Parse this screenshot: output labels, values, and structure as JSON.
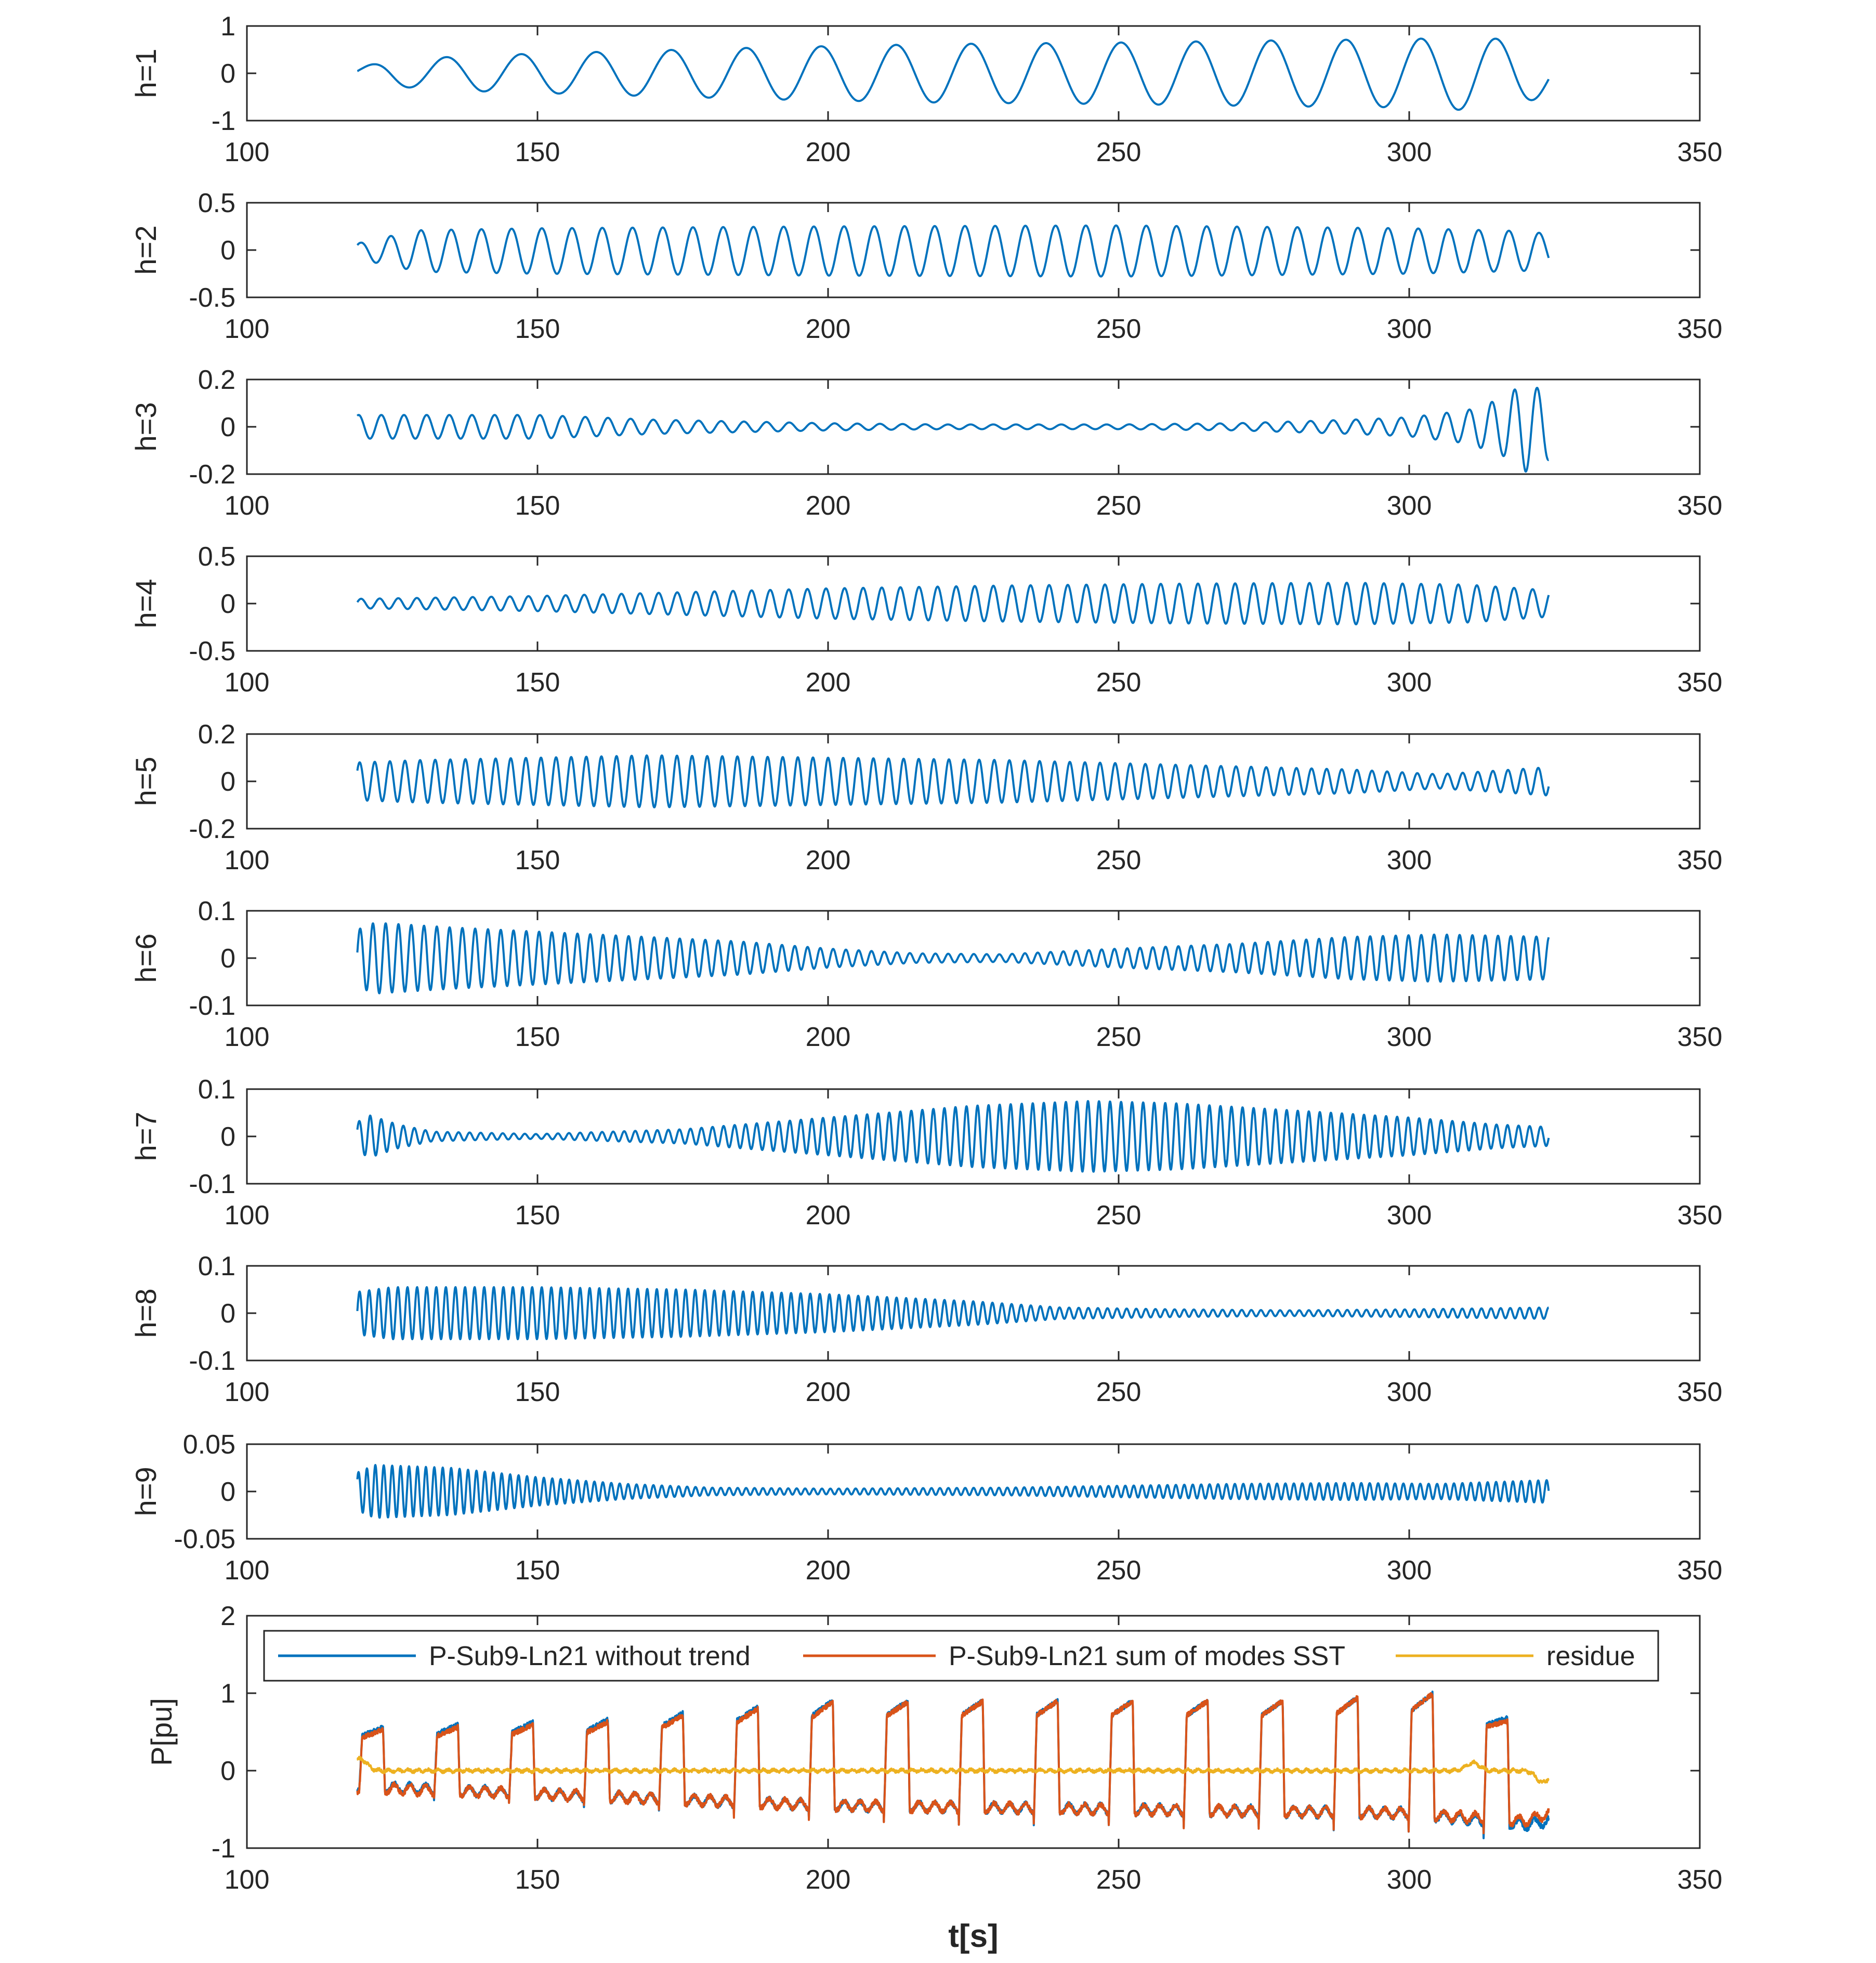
{
  "chart_data": [
    {
      "type": "line",
      "id": "h1",
      "ylabel": "h=1",
      "xlim": [
        100,
        350
      ],
      "ylim": [
        -1,
        1
      ],
      "xticks": [
        100,
        150,
        200,
        250,
        300,
        350
      ],
      "yticks": [
        -1,
        0,
        1
      ],
      "ytick_labels": [
        "-1",
        "0",
        "1"
      ],
      "x_range": [
        119,
        324
      ],
      "series": [
        {
          "name": "h=1",
          "color": "#0072bd",
          "kind": "osc",
          "period": 12.9,
          "phase": 0.4,
          "offset": 0,
          "envelope": {
            "t": [
              119,
              125,
              140,
              160,
              190,
              220,
              250,
              280,
              300,
              310,
              318,
              324
            ],
            "a": [
              0.12,
              0.28,
              0.38,
              0.45,
              0.55,
              0.62,
              0.65,
              0.7,
              0.72,
              0.78,
              0.7,
              0.45
            ]
          }
        }
      ]
    },
    {
      "type": "line",
      "id": "h2",
      "ylabel": "h=2",
      "xlim": [
        100,
        350
      ],
      "ylim": [
        -0.5,
        0.5
      ],
      "xticks": [
        100,
        150,
        200,
        250,
        300,
        350
      ],
      "yticks": [
        -0.5,
        0,
        0.5
      ],
      "ytick_labels": [
        "-0.5",
        "0",
        "0.5"
      ],
      "x_range": [
        119,
        324
      ],
      "series": [
        {
          "name": "h=2",
          "color": "#0072bd",
          "kind": "osc",
          "period": 5.2,
          "phase": 0.9,
          "offset": -0.01,
          "envelope": {
            "t": [
              119,
              124,
              130,
              150,
              200,
              250,
              300,
              320,
              324
            ],
            "a": [
              0.08,
              0.15,
              0.22,
              0.24,
              0.26,
              0.27,
              0.24,
              0.21,
              0.18
            ]
          }
        }
      ]
    },
    {
      "type": "line",
      "id": "h3",
      "ylabel": "h=3",
      "xlim": [
        100,
        350
      ],
      "ylim": [
        -0.2,
        0.2
      ],
      "xticks": [
        100,
        150,
        200,
        250,
        300,
        350
      ],
      "yticks": [
        -0.2,
        0,
        0.2
      ],
      "ytick_labels": [
        "-0.2",
        "0",
        "0.2"
      ],
      "x_range": [
        119,
        324
      ],
      "series": [
        {
          "name": "h=3",
          "color": "#0072bd",
          "kind": "osc",
          "period": 3.9,
          "phase": 1.2,
          "offset": 0,
          "envelope": {
            "t": [
              119,
              130,
              150,
              170,
              200,
              220,
              250,
              270,
              290,
              300,
              310,
              316,
              320,
              324
            ],
            "a": [
              0.05,
              0.05,
              0.05,
              0.03,
              0.015,
              0.01,
              0.01,
              0.015,
              0.03,
              0.04,
              0.07,
              0.12,
              0.19,
              0.14
            ]
          }
        }
      ]
    },
    {
      "type": "line",
      "id": "h4",
      "ylabel": "h=4",
      "xlim": [
        100,
        350
      ],
      "ylim": [
        -0.5,
        0.5
      ],
      "xticks": [
        100,
        150,
        200,
        250,
        300,
        350
      ],
      "yticks": [
        -0.5,
        0,
        0.5
      ],
      "ytick_labels": [
        "-0.5",
        "0",
        "0.5"
      ],
      "x_range": [
        119,
        324
      ],
      "series": [
        {
          "name": "h=4",
          "color": "#0072bd",
          "kind": "osc",
          "period": 3.2,
          "phase": 0.3,
          "offset": 0,
          "envelope": {
            "t": [
              119,
              130,
              150,
              175,
              200,
              230,
              260,
              290,
              310,
              324
            ],
            "a": [
              0.05,
              0.06,
              0.08,
              0.12,
              0.16,
              0.19,
              0.21,
              0.22,
              0.2,
              0.14
            ]
          }
        }
      ]
    },
    {
      "type": "line",
      "id": "h5",
      "ylabel": "h=5",
      "xlim": [
        100,
        350
      ],
      "ylim": [
        -0.2,
        0.2
      ],
      "xticks": [
        100,
        150,
        200,
        250,
        300,
        350
      ],
      "yticks": [
        -0.2,
        0,
        0.2
      ],
      "ytick_labels": [
        "-0.2",
        "0",
        "0.2"
      ],
      "x_range": [
        119,
        324
      ],
      "series": [
        {
          "name": "h=5",
          "color": "#0072bd",
          "kind": "osc",
          "period": 2.6,
          "phase": 0.6,
          "offset": 0,
          "envelope": {
            "t": [
              119,
              130,
              150,
              170,
              200,
              230,
              260,
              290,
              305,
              315,
              324
            ],
            "a": [
              0.08,
              0.09,
              0.1,
              0.11,
              0.1,
              0.09,
              0.07,
              0.05,
              0.03,
              0.045,
              0.06
            ]
          }
        }
      ]
    },
    {
      "type": "line",
      "id": "h6",
      "ylabel": "h=6",
      "xlim": [
        100,
        350
      ],
      "ylim": [
        -0.1,
        0.1
      ],
      "xticks": [
        100,
        150,
        200,
        250,
        300,
        350
      ],
      "yticks": [
        -0.1,
        0,
        0.1
      ],
      "ytick_labels": [
        "-0.1",
        "0",
        "0.1"
      ],
      "x_range": [
        119,
        324
      ],
      "series": [
        {
          "name": "h=6",
          "color": "#0072bd",
          "kind": "osc",
          "period": 2.2,
          "phase": 0.2,
          "offset": 0,
          "envelope": {
            "t": [
              119,
              122,
              135,
              160,
              185,
              200,
              215,
              230,
              250,
              270,
              290,
              305,
              324
            ],
            "a": [
              0.06,
              0.075,
              0.065,
              0.05,
              0.035,
              0.02,
              0.01,
              0.008,
              0.02,
              0.03,
              0.045,
              0.05,
              0.045
            ]
          }
        }
      ]
    },
    {
      "type": "line",
      "id": "h7",
      "ylabel": "h=7",
      "xlim": [
        100,
        350
      ],
      "ylim": [
        -0.1,
        0.1
      ],
      "xticks": [
        100,
        150,
        200,
        250,
        300,
        350
      ],
      "yticks": [
        -0.1,
        0,
        0.1
      ],
      "ytick_labels": [
        "-0.1",
        "0",
        "0.1"
      ],
      "x_range": [
        119,
        324
      ],
      "series": [
        {
          "name": "h=7",
          "color": "#0072bd",
          "kind": "osc",
          "period": 1.9,
          "phase": 0.5,
          "offset": 0,
          "envelope": {
            "t": [
              119,
              121,
              126,
              132,
              150,
              175,
              200,
              225,
              245,
              260,
              280,
              300,
              315,
              324
            ],
            "a": [
              0.03,
              0.045,
              0.025,
              0.01,
              0.005,
              0.015,
              0.04,
              0.065,
              0.075,
              0.07,
              0.055,
              0.04,
              0.025,
              0.02
            ]
          }
        }
      ]
    },
    {
      "type": "line",
      "id": "h8",
      "ylabel": "h=8",
      "xlim": [
        100,
        350
      ],
      "ylim": [
        -0.1,
        0.1
      ],
      "xticks": [
        100,
        150,
        200,
        250,
        300,
        350
      ],
      "yticks": [
        -0.1,
        0,
        0.1
      ],
      "ytick_labels": [
        "-0.1",
        "0",
        "0.1"
      ],
      "x_range": [
        119,
        324
      ],
      "series": [
        {
          "name": "h=8",
          "color": "#0072bd",
          "kind": "osc",
          "period": 1.65,
          "phase": 0.1,
          "offset": 0,
          "envelope": {
            "t": [
              119,
              125,
              150,
              175,
              200,
              225,
              240,
              260,
              280,
              300,
              324
            ],
            "a": [
              0.045,
              0.055,
              0.055,
              0.05,
              0.04,
              0.025,
              0.012,
              0.008,
              0.006,
              0.008,
              0.012
            ]
          }
        }
      ]
    },
    {
      "type": "line",
      "id": "h9",
      "ylabel": "h=9",
      "xlim": [
        100,
        350
      ],
      "ylim": [
        -0.05,
        0.05
      ],
      "xticks": [
        100,
        150,
        200,
        250,
        300,
        350
      ],
      "yticks": [
        -0.05,
        0,
        0.05
      ],
      "ytick_labels": [
        "-0.05",
        "0",
        "0.05"
      ],
      "x_range": [
        119,
        324
      ],
      "series": [
        {
          "name": "h=9",
          "color": "#0072bd",
          "kind": "osc",
          "period": 1.45,
          "phase": 0.7,
          "offset": 0,
          "envelope": {
            "t": [
              119,
              122,
              135,
              150,
              165,
              180,
              200,
              230,
              250,
              270,
              290,
              305,
              324
            ],
            "a": [
              0.02,
              0.028,
              0.025,
              0.015,
              0.008,
              0.004,
              0.003,
              0.004,
              0.006,
              0.008,
              0.009,
              0.008,
              0.012
            ]
          }
        }
      ]
    },
    {
      "type": "line",
      "id": "p",
      "ylabel": "P[pu]",
      "xlabel": "t[s]",
      "xlim": [
        100,
        350
      ],
      "ylim": [
        -1,
        2
      ],
      "xticks": [
        100,
        150,
        200,
        250,
        300,
        350
      ],
      "yticks": [
        -1,
        0,
        1,
        2
      ],
      "ytick_labels": [
        "-1",
        "0",
        "1",
        "2"
      ],
      "x_range": [
        119,
        324
      ],
      "legend": {
        "location": "top",
        "orientation": "horizontal",
        "entries": [
          "P-Sub9-Ln21 without trend",
          "P-Sub9-Ln21 sum of modes SST",
          "residue"
        ]
      },
      "series": [
        {
          "name": "P-Sub9-Ln21 without trend",
          "color": "#0072bd",
          "kind": "square",
          "period": 12.9,
          "t0": 119.3,
          "duty": 0.32,
          "high": {
            "t": [
              119,
              160,
              200,
              240,
              280,
              305,
              318,
              324
            ],
            "v": [
              0.55,
              0.65,
              0.9,
              0.9,
              0.9,
              1.0,
              0.65,
              0.3
            ]
          },
          "low": {
            "t": [
              119,
              150,
              200,
              250,
              300,
              320,
              324
            ],
            "v": [
              -0.2,
              -0.3,
              -0.45,
              -0.5,
              -0.55,
              -0.7,
              -0.65
            ]
          },
          "noise": 0.03
        },
        {
          "name": "P-Sub9-Ln21 sum of modes SST",
          "color": "#d95319",
          "kind": "square",
          "period": 12.9,
          "t0": 119.3,
          "duty": 0.32,
          "high": {
            "t": [
              119,
              160,
              200,
              240,
              280,
              305,
              318,
              324
            ],
            "v": [
              0.52,
              0.62,
              0.88,
              0.9,
              0.9,
              1.0,
              0.6,
              0.25
            ]
          },
          "low": {
            "t": [
              119,
              150,
              200,
              250,
              300,
              320,
              324
            ],
            "v": [
              -0.22,
              -0.3,
              -0.45,
              -0.5,
              -0.55,
              -0.65,
              -0.55
            ]
          },
          "noise": 0.03
        },
        {
          "name": "residue",
          "color": "#edb120",
          "kind": "noise",
          "offset": 0,
          "amp": 0.025,
          "bursts": [
            {
              "t": 119.5,
              "a": 0.15
            },
            {
              "t": 311,
              "a": 0.1
            },
            {
              "t": 323,
              "a": -0.15
            }
          ]
        }
      ]
    }
  ]
}
